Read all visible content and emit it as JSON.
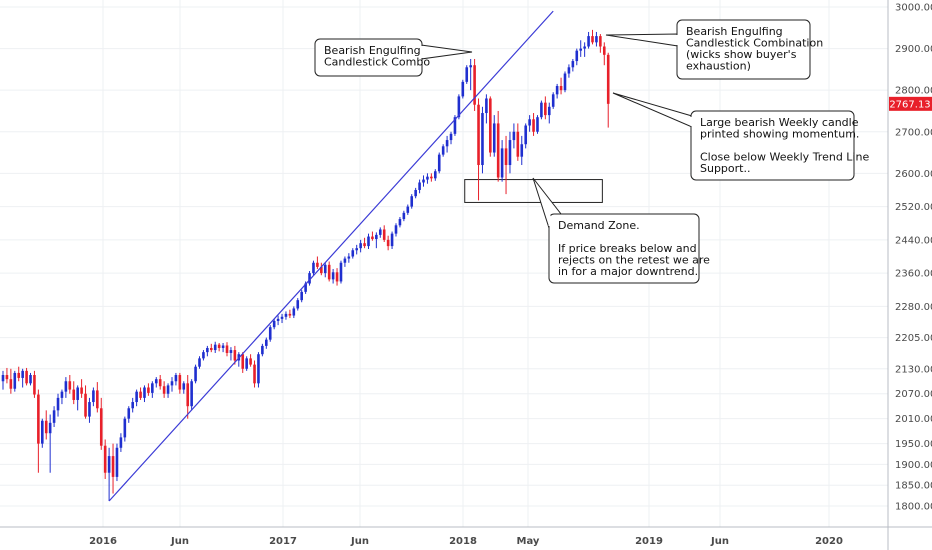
{
  "chart_data": {
    "type": "candlestick",
    "title": "",
    "xlabel": "",
    "ylabel": "",
    "ylim": [
      1780,
      3010
    ],
    "y_ticks": [
      "3000.00",
      "2900.00",
      "2800.00",
      "2700.00",
      "2600.00",
      "2520.00",
      "2440.00",
      "2360.00",
      "2280.00",
      "2205.00",
      "2130.00",
      "2070.00",
      "2010.00",
      "1950.00",
      "1900.00",
      "1850.00",
      "1800.00"
    ],
    "x_ticks": [
      "2016",
      "Jun",
      "2017",
      "Jun",
      "2018",
      "May",
      "2019",
      "Jun",
      "2020"
    ],
    "last_price": "2767.13",
    "colors": {
      "up": "#1f2fcf",
      "down": "#e8202a",
      "trendline": "#3b3bd6",
      "price_tag": "#e8202a"
    },
    "candles": [
      {
        "o": 2100,
        "h": 2125,
        "l": 2080,
        "c": 2115
      },
      {
        "o": 2115,
        "h": 2132,
        "l": 2095,
        "c": 2105
      },
      {
        "o": 2105,
        "h": 2130,
        "l": 2070,
        "c": 2082
      },
      {
        "o": 2082,
        "h": 2125,
        "l": 2075,
        "c": 2120
      },
      {
        "o": 2120,
        "h": 2135,
        "l": 2100,
        "c": 2108
      },
      {
        "o": 2108,
        "h": 2130,
        "l": 2085,
        "c": 2125
      },
      {
        "o": 2125,
        "h": 2132,
        "l": 2090,
        "c": 2095
      },
      {
        "o": 2095,
        "h": 2120,
        "l": 2090,
        "c": 2115
      },
      {
        "o": 2115,
        "h": 2125,
        "l": 2060,
        "c": 2068
      },
      {
        "o": 2068,
        "h": 2080,
        "l": 1880,
        "c": 1950
      },
      {
        "o": 1950,
        "h": 2010,
        "l": 1940,
        "c": 2005
      },
      {
        "o": 2005,
        "h": 2030,
        "l": 1960,
        "c": 1975
      },
      {
        "o": 1975,
        "h": 2020,
        "l": 1880,
        "c": 2000
      },
      {
        "o": 2000,
        "h": 2040,
        "l": 1990,
        "c": 2030
      },
      {
        "o": 2030,
        "h": 2070,
        "l": 2015,
        "c": 2060
      },
      {
        "o": 2060,
        "h": 2080,
        "l": 2045,
        "c": 2075
      },
      {
        "o": 2075,
        "h": 2110,
        "l": 2060,
        "c": 2100
      },
      {
        "o": 2100,
        "h": 2115,
        "l": 2070,
        "c": 2080
      },
      {
        "o": 2080,
        "h": 2100,
        "l": 2045,
        "c": 2055
      },
      {
        "o": 2055,
        "h": 2090,
        "l": 2030,
        "c": 2085
      },
      {
        "o": 2085,
        "h": 2105,
        "l": 2060,
        "c": 2070
      },
      {
        "o": 2070,
        "h": 2090,
        "l": 2010,
        "c": 2015
      },
      {
        "o": 2015,
        "h": 2060,
        "l": 2000,
        "c": 2050
      },
      {
        "o": 2050,
        "h": 2085,
        "l": 2040,
        "c": 2078
      },
      {
        "o": 2078,
        "h": 2098,
        "l": 2025,
        "c": 2035
      },
      {
        "o": 2035,
        "h": 2060,
        "l": 1935,
        "c": 1945
      },
      {
        "o": 1945,
        "h": 1960,
        "l": 1865,
        "c": 1880
      },
      {
        "o": 1880,
        "h": 1940,
        "l": 1812,
        "c": 1920
      },
      {
        "o": 1920,
        "h": 1950,
        "l": 1830,
        "c": 1870
      },
      {
        "o": 1870,
        "h": 1950,
        "l": 1860,
        "c": 1940
      },
      {
        "o": 1940,
        "h": 1975,
        "l": 1930,
        "c": 1965
      },
      {
        "o": 1965,
        "h": 2015,
        "l": 1955,
        "c": 2010
      },
      {
        "o": 2010,
        "h": 2040,
        "l": 2000,
        "c": 2035
      },
      {
        "o": 2035,
        "h": 2060,
        "l": 2025,
        "c": 2050
      },
      {
        "o": 2050,
        "h": 2080,
        "l": 2040,
        "c": 2075
      },
      {
        "o": 2075,
        "h": 2085,
        "l": 2055,
        "c": 2060
      },
      {
        "o": 2060,
        "h": 2090,
        "l": 2050,
        "c": 2085
      },
      {
        "o": 2085,
        "h": 2095,
        "l": 2065,
        "c": 2072
      },
      {
        "o": 2072,
        "h": 2100,
        "l": 2060,
        "c": 2095
      },
      {
        "o": 2095,
        "h": 2110,
        "l": 2085,
        "c": 2105
      },
      {
        "o": 2105,
        "h": 2115,
        "l": 2080,
        "c": 2088
      },
      {
        "o": 2088,
        "h": 2100,
        "l": 2060,
        "c": 2070
      },
      {
        "o": 2070,
        "h": 2095,
        "l": 2060,
        "c": 2090
      },
      {
        "o": 2090,
        "h": 2110,
        "l": 2075,
        "c": 2100
      },
      {
        "o": 2100,
        "h": 2120,
        "l": 2090,
        "c": 2115
      },
      {
        "o": 2115,
        "h": 2120,
        "l": 2070,
        "c": 2080
      },
      {
        "o": 2080,
        "h": 2100,
        "l": 2070,
        "c": 2095
      },
      {
        "o": 2095,
        "h": 2115,
        "l": 2010,
        "c": 2040
      },
      {
        "o": 2040,
        "h": 2105,
        "l": 2030,
        "c": 2100
      },
      {
        "o": 2100,
        "h": 2140,
        "l": 2095,
        "c": 2135
      },
      {
        "o": 2135,
        "h": 2160,
        "l": 2130,
        "c": 2155
      },
      {
        "o": 2155,
        "h": 2175,
        "l": 2150,
        "c": 2170
      },
      {
        "o": 2170,
        "h": 2185,
        "l": 2160,
        "c": 2180
      },
      {
        "o": 2180,
        "h": 2190,
        "l": 2170,
        "c": 2175
      },
      {
        "o": 2175,
        "h": 2195,
        "l": 2168,
        "c": 2188
      },
      {
        "o": 2188,
        "h": 2192,
        "l": 2172,
        "c": 2180
      },
      {
        "o": 2180,
        "h": 2192,
        "l": 2170,
        "c": 2186
      },
      {
        "o": 2186,
        "h": 2194,
        "l": 2160,
        "c": 2168
      },
      {
        "o": 2168,
        "h": 2182,
        "l": 2150,
        "c": 2175
      },
      {
        "o": 2175,
        "h": 2185,
        "l": 2140,
        "c": 2150
      },
      {
        "o": 2150,
        "h": 2170,
        "l": 2135,
        "c": 2165
      },
      {
        "o": 2165,
        "h": 2170,
        "l": 2120,
        "c": 2130
      },
      {
        "o": 2130,
        "h": 2160,
        "l": 2125,
        "c": 2155
      },
      {
        "o": 2155,
        "h": 2165,
        "l": 2135,
        "c": 2140
      },
      {
        "o": 2140,
        "h": 2150,
        "l": 2085,
        "c": 2095
      },
      {
        "o": 2095,
        "h": 2170,
        "l": 2085,
        "c": 2165
      },
      {
        "o": 2165,
        "h": 2190,
        "l": 2160,
        "c": 2185
      },
      {
        "o": 2185,
        "h": 2205,
        "l": 2178,
        "c": 2200
      },
      {
        "o": 2200,
        "h": 2235,
        "l": 2195,
        "c": 2230
      },
      {
        "o": 2230,
        "h": 2250,
        "l": 2225,
        "c": 2245
      },
      {
        "o": 2245,
        "h": 2258,
        "l": 2235,
        "c": 2250
      },
      {
        "o": 2250,
        "h": 2262,
        "l": 2240,
        "c": 2255
      },
      {
        "o": 2255,
        "h": 2268,
        "l": 2248,
        "c": 2262
      },
      {
        "o": 2262,
        "h": 2272,
        "l": 2252,
        "c": 2258
      },
      {
        "o": 2258,
        "h": 2280,
        "l": 2252,
        "c": 2275
      },
      {
        "o": 2275,
        "h": 2300,
        "l": 2270,
        "c": 2295
      },
      {
        "o": 2295,
        "h": 2320,
        "l": 2290,
        "c": 2315
      },
      {
        "o": 2315,
        "h": 2340,
        "l": 2310,
        "c": 2335
      },
      {
        "o": 2335,
        "h": 2365,
        "l": 2330,
        "c": 2360
      },
      {
        "o": 2360,
        "h": 2390,
        "l": 2355,
        "c": 2385
      },
      {
        "o": 2385,
        "h": 2400,
        "l": 2370,
        "c": 2375
      },
      {
        "o": 2375,
        "h": 2385,
        "l": 2355,
        "c": 2360
      },
      {
        "o": 2360,
        "h": 2385,
        "l": 2350,
        "c": 2380
      },
      {
        "o": 2380,
        "h": 2388,
        "l": 2340,
        "c": 2345
      },
      {
        "o": 2345,
        "h": 2370,
        "l": 2335,
        "c": 2362
      },
      {
        "o": 2362,
        "h": 2372,
        "l": 2330,
        "c": 2340
      },
      {
        "o": 2340,
        "h": 2390,
        "l": 2335,
        "c": 2385
      },
      {
        "o": 2385,
        "h": 2400,
        "l": 2375,
        "c": 2395
      },
      {
        "o": 2395,
        "h": 2408,
        "l": 2385,
        "c": 2400
      },
      {
        "o": 2400,
        "h": 2420,
        "l": 2395,
        "c": 2415
      },
      {
        "o": 2415,
        "h": 2428,
        "l": 2405,
        "c": 2420
      },
      {
        "o": 2420,
        "h": 2440,
        "l": 2410,
        "c": 2432
      },
      {
        "o": 2432,
        "h": 2445,
        "l": 2420,
        "c": 2425
      },
      {
        "o": 2425,
        "h": 2455,
        "l": 2418,
        "c": 2448
      },
      {
        "o": 2448,
        "h": 2460,
        "l": 2438,
        "c": 2442
      },
      {
        "o": 2442,
        "h": 2458,
        "l": 2420,
        "c": 2452
      },
      {
        "o": 2452,
        "h": 2470,
        "l": 2445,
        "c": 2465
      },
      {
        "o": 2465,
        "h": 2475,
        "l": 2435,
        "c": 2440
      },
      {
        "o": 2440,
        "h": 2450,
        "l": 2415,
        "c": 2425
      },
      {
        "o": 2425,
        "h": 2460,
        "l": 2418,
        "c": 2455
      },
      {
        "o": 2455,
        "h": 2480,
        "l": 2448,
        "c": 2475
      },
      {
        "o": 2475,
        "h": 2495,
        "l": 2470,
        "c": 2490
      },
      {
        "o": 2490,
        "h": 2510,
        "l": 2485,
        "c": 2505
      },
      {
        "o": 2505,
        "h": 2525,
        "l": 2500,
        "c": 2520
      },
      {
        "o": 2520,
        "h": 2550,
        "l": 2515,
        "c": 2545
      },
      {
        "o": 2545,
        "h": 2565,
        "l": 2540,
        "c": 2560
      },
      {
        "o": 2560,
        "h": 2585,
        "l": 2552,
        "c": 2578
      },
      {
        "o": 2578,
        "h": 2595,
        "l": 2568,
        "c": 2585
      },
      {
        "o": 2585,
        "h": 2600,
        "l": 2575,
        "c": 2592
      },
      {
        "o": 2592,
        "h": 2600,
        "l": 2580,
        "c": 2588
      },
      {
        "o": 2588,
        "h": 2610,
        "l": 2582,
        "c": 2605
      },
      {
        "o": 2605,
        "h": 2650,
        "l": 2600,
        "c": 2645
      },
      {
        "o": 2645,
        "h": 2670,
        "l": 2640,
        "c": 2665
      },
      {
        "o": 2665,
        "h": 2690,
        "l": 2650,
        "c": 2680
      },
      {
        "o": 2680,
        "h": 2700,
        "l": 2670,
        "c": 2695
      },
      {
        "o": 2695,
        "h": 2740,
        "l": 2690,
        "c": 2735
      },
      {
        "o": 2735,
        "h": 2790,
        "l": 2730,
        "c": 2785
      },
      {
        "o": 2785,
        "h": 2825,
        "l": 2780,
        "c": 2820
      },
      {
        "o": 2820,
        "h": 2860,
        "l": 2815,
        "c": 2855
      },
      {
        "o": 2855,
        "h": 2875,
        "l": 2800,
        "c": 2860
      },
      {
        "o": 2860,
        "h": 2875,
        "l": 2750,
        "c": 2765
      },
      {
        "o": 2765,
        "h": 2780,
        "l": 2535,
        "c": 2620
      },
      {
        "o": 2620,
        "h": 2760,
        "l": 2600,
        "c": 2745
      },
      {
        "o": 2745,
        "h": 2790,
        "l": 2720,
        "c": 2780
      },
      {
        "o": 2780,
        "h": 2785,
        "l": 2640,
        "c": 2650
      },
      {
        "o": 2650,
        "h": 2740,
        "l": 2640,
        "c": 2720
      },
      {
        "o": 2720,
        "h": 2750,
        "l": 2580,
        "c": 2590
      },
      {
        "o": 2590,
        "h": 2680,
        "l": 2580,
        "c": 2660
      },
      {
        "o": 2660,
        "h": 2690,
        "l": 2550,
        "c": 2620
      },
      {
        "o": 2620,
        "h": 2700,
        "l": 2600,
        "c": 2680
      },
      {
        "o": 2680,
        "h": 2720,
        "l": 2660,
        "c": 2700
      },
      {
        "o": 2700,
        "h": 2720,
        "l": 2630,
        "c": 2640
      },
      {
        "o": 2640,
        "h": 2690,
        "l": 2620,
        "c": 2670
      },
      {
        "o": 2670,
        "h": 2720,
        "l": 2660,
        "c": 2715
      },
      {
        "o": 2715,
        "h": 2740,
        "l": 2700,
        "c": 2730
      },
      {
        "o": 2730,
        "h": 2745,
        "l": 2690,
        "c": 2700
      },
      {
        "o": 2700,
        "h": 2740,
        "l": 2695,
        "c": 2735
      },
      {
        "o": 2735,
        "h": 2775,
        "l": 2730,
        "c": 2770
      },
      {
        "o": 2770,
        "h": 2785,
        "l": 2730,
        "c": 2740
      },
      {
        "o": 2740,
        "h": 2770,
        "l": 2720,
        "c": 2760
      },
      {
        "o": 2760,
        "h": 2795,
        "l": 2755,
        "c": 2790
      },
      {
        "o": 2790,
        "h": 2815,
        "l": 2780,
        "c": 2810
      },
      {
        "o": 2810,
        "h": 2830,
        "l": 2790,
        "c": 2800
      },
      {
        "o": 2800,
        "h": 2845,
        "l": 2795,
        "c": 2840
      },
      {
        "o": 2840,
        "h": 2862,
        "l": 2830,
        "c": 2855
      },
      {
        "o": 2855,
        "h": 2875,
        "l": 2845,
        "c": 2870
      },
      {
        "o": 2870,
        "h": 2900,
        "l": 2860,
        "c": 2895
      },
      {
        "o": 2895,
        "h": 2920,
        "l": 2880,
        "c": 2900
      },
      {
        "o": 2900,
        "h": 2915,
        "l": 2880,
        "c": 2905
      },
      {
        "o": 2905,
        "h": 2940,
        "l": 2900,
        "c": 2930
      },
      {
        "o": 2930,
        "h": 2945,
        "l": 2910,
        "c": 2915
      },
      {
        "o": 2915,
        "h": 2940,
        "l": 2905,
        "c": 2930
      },
      {
        "o": 2930,
        "h": 2935,
        "l": 2890,
        "c": 2905
      },
      {
        "o": 2905,
        "h": 2915,
        "l": 2860,
        "c": 2885
      },
      {
        "o": 2885,
        "h": 2890,
        "l": 2710,
        "c": 2767.13
      }
    ],
    "trendline": [
      {
        "candle": 27,
        "price": 1812
      },
      {
        "candle": 140,
        "price": 2990
      }
    ],
    "demand_zone": {
      "from_candle": 118,
      "to_candle": 152,
      "top": 2585,
      "bottom": 2530
    },
    "annotations": [
      {
        "lines": [
          "Bearish Engulfing",
          "Candlestick Combo"
        ]
      },
      {
        "lines": [
          "Bearish Engulfing",
          "Candlestick Combination",
          "(wicks show buyer's",
          "exhaustion)"
        ]
      },
      {
        "lines": [
          "Large bearish Weekly candle",
          "printed showing momentum.",
          "",
          "Close below Weekly Trend Line",
          "Support.."
        ]
      },
      {
        "lines": [
          "Demand Zone.",
          "",
          "If price breaks below and",
          "rejects on the retest we are",
          "in for a major downtrend."
        ]
      }
    ]
  }
}
